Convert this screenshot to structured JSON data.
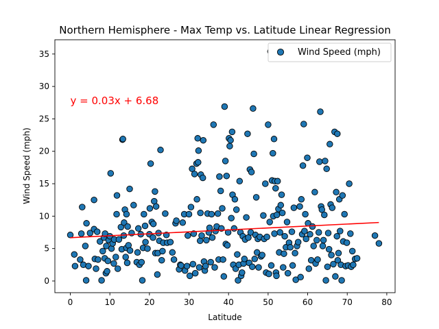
{
  "chart_data": {
    "type": "scatter",
    "title": "Northern Hemisphere - Max Temp vs. Latitude Linear Regression",
    "xlabel": "Latitude",
    "ylabel": "Wind Speed (mph)",
    "xlim": [
      -3.9,
      82.1
    ],
    "ylim": [
      -1.8,
      37.2
    ],
    "xticks": [
      0,
      10,
      20,
      30,
      40,
      50,
      60,
      70,
      80
    ],
    "yticks": [
      0,
      5,
      10,
      15,
      20,
      25,
      30,
      35
    ],
    "legend": {
      "label": "Wind Speed (mph)",
      "position": "top-right"
    },
    "grid": false,
    "point_color": "#1f77b4",
    "point_edge_color": "#000000",
    "regression": {
      "equation": "y = 0.03x + 6.68",
      "slope": 0.03,
      "intercept": 6.68,
      "x_range": [
        0.0,
        78.0
      ],
      "color": "#ff0000",
      "label_x": 0.0,
      "label_y": 27.8
    },
    "points": [
      [
        0.0,
        7.1
      ],
      [
        1.0,
        4.1
      ],
      [
        1.2,
        2.3
      ],
      [
        2.5,
        3.3
      ],
      [
        2.8,
        7.3
      ],
      [
        3.0,
        11.4
      ],
      [
        3.3,
        2.5
      ],
      [
        3.8,
        5.4
      ],
      [
        4.0,
        0.1
      ],
      [
        4.1,
        8.9
      ],
      [
        4.6,
        2.3
      ],
      [
        5.0,
        7.4
      ],
      [
        6.0,
        12.5
      ],
      [
        6.0,
        8.0
      ],
      [
        6.2,
        3.4
      ],
      [
        6.5,
        1.9
      ],
      [
        6.8,
        7.6
      ],
      [
        7.0,
        3.3
      ],
      [
        7.5,
        6.1
      ],
      [
        7.9,
        0.1
      ],
      [
        8.2,
        4.6
      ],
      [
        8.5,
        6.7
      ],
      [
        8.7,
        3.5
      ],
      [
        8.8,
        7.3
      ],
      [
        9.0,
        1.2
      ],
      [
        9.1,
        5.4
      ],
      [
        9.3,
        1.5
      ],
      [
        9.5,
        3.1
      ],
      [
        9.7,
        6.3
      ],
      [
        10.0,
        6.9
      ],
      [
        10.2,
        16.6
      ],
      [
        10.4,
        5.0
      ],
      [
        10.7,
        5.8
      ],
      [
        11.0,
        2.7
      ],
      [
        11.1,
        6.4
      ],
      [
        11.5,
        3.7
      ],
      [
        11.7,
        10.3
      ],
      [
        11.8,
        13.2
      ],
      [
        12.0,
        1.9
      ],
      [
        12.3,
        6.4
      ],
      [
        12.8,
        8.3
      ],
      [
        13.0,
        4.9
      ],
      [
        13.2,
        21.8
      ],
      [
        13.3,
        21.9
      ],
      [
        13.5,
        7.0
      ],
      [
        13.6,
        9.0
      ],
      [
        13.8,
        11.0
      ],
      [
        14.0,
        3.7
      ],
      [
        14.2,
        5.1
      ],
      [
        14.2,
        10.3
      ],
      [
        14.4,
        2.8
      ],
      [
        14.5,
        8.4
      ],
      [
        14.7,
        5.5
      ],
      [
        15.0,
        14.2
      ],
      [
        15.1,
        4.7
      ],
      [
        15.5,
        7.4
      ],
      [
        16.0,
        11.7
      ],
      [
        16.8,
        2.9
      ],
      [
        17.0,
        4.4
      ],
      [
        17.2,
        8.1
      ],
      [
        17.5,
        2.5
      ],
      [
        17.8,
        7.2
      ],
      [
        18.0,
        2.9
      ],
      [
        18.2,
        0.1
      ],
      [
        18.4,
        5.1
      ],
      [
        18.6,
        10.3
      ],
      [
        18.9,
        8.5
      ],
      [
        19.0,
        6.0
      ],
      [
        19.5,
        5.0
      ],
      [
        20.0,
        7.2
      ],
      [
        20.1,
        11.2
      ],
      [
        20.3,
        18.1
      ],
      [
        20.6,
        9.1
      ],
      [
        20.9,
        6.7
      ],
      [
        21.0,
        8.8
      ],
      [
        21.2,
        12.3
      ],
      [
        21.4,
        13.8
      ],
      [
        21.5,
        4.3
      ],
      [
        21.7,
        11.5
      ],
      [
        22.0,
        1.0
      ],
      [
        22.1,
        4.3
      ],
      [
        22.3,
        7.4
      ],
      [
        22.5,
        6.2
      ],
      [
        22.8,
        20.2
      ],
      [
        23.1,
        3.2
      ],
      [
        23.3,
        4.6
      ],
      [
        23.5,
        5.9
      ],
      [
        24.0,
        10.4
      ],
      [
        24.3,
        7.1
      ],
      [
        24.5,
        5.9
      ],
      [
        25.3,
        6.0
      ],
      [
        25.8,
        4.4
      ],
      [
        26.2,
        3.3
      ],
      [
        26.6,
        8.9
      ],
      [
        26.8,
        9.3
      ],
      [
        27.5,
        1.8
      ],
      [
        27.8,
        2.5
      ],
      [
        28.0,
        2.4
      ],
      [
        28.4,
        9.0
      ],
      [
        28.8,
        10.3
      ],
      [
        29.0,
        1.6
      ],
      [
        29.5,
        2.3
      ],
      [
        29.7,
        7.0
      ],
      [
        30.0,
        10.3
      ],
      [
        30.2,
        0.8
      ],
      [
        30.5,
        11.4
      ],
      [
        30.8,
        17.3
      ],
      [
        31.0,
        2.6
      ],
      [
        31.2,
        7.3
      ],
      [
        31.4,
        16.5
      ],
      [
        31.6,
        1.2
      ],
      [
        31.9,
        18.1
      ],
      [
        32.0,
        12.6
      ],
      [
        32.2,
        22.0
      ],
      [
        32.3,
        18.3
      ],
      [
        32.4,
        20.1
      ],
      [
        32.6,
        2.1
      ],
      [
        32.8,
        6.2
      ],
      [
        32.9,
        10.5
      ],
      [
        33.0,
        16.4
      ],
      [
        33.2,
        7.0
      ],
      [
        33.5,
        15.9
      ],
      [
        33.6,
        21.7
      ],
      [
        33.8,
        3.0
      ],
      [
        34.0,
        1.6
      ],
      [
        34.2,
        2.3
      ],
      [
        34.4,
        6.3
      ],
      [
        34.7,
        10.4
      ],
      [
        35.0,
        7.5
      ],
      [
        35.2,
        8.2
      ],
      [
        35.5,
        2.9
      ],
      [
        35.7,
        10.3
      ],
      [
        35.9,
        6.7
      ],
      [
        36.2,
        24.1
      ],
      [
        36.5,
        2.1
      ],
      [
        36.7,
        7.7
      ],
      [
        37.0,
        8.4
      ],
      [
        37.3,
        10.4
      ],
      [
        37.5,
        3.3
      ],
      [
        37.7,
        16.1
      ],
      [
        38.0,
        13.9
      ],
      [
        38.2,
        8.1
      ],
      [
        38.4,
        11.2
      ],
      [
        38.6,
        3.3
      ],
      [
        38.8,
        0.7
      ],
      [
        39.0,
        26.9
      ],
      [
        39.2,
        18.5
      ],
      [
        39.3,
        5.7
      ],
      [
        39.5,
        16.2
      ],
      [
        39.7,
        5.5
      ],
      [
        39.9,
        7.5
      ],
      [
        40.1,
        22.0
      ],
      [
        40.3,
        20.8
      ],
      [
        40.5,
        21.7
      ],
      [
        40.7,
        9.7
      ],
      [
        40.9,
        23.0
      ],
      [
        41.0,
        13.3
      ],
      [
        41.2,
        2.5
      ],
      [
        41.4,
        8.1
      ],
      [
        41.6,
        12.6
      ],
      [
        41.8,
        1.9
      ],
      [
        42.0,
        11.0
      ],
      [
        42.2,
        4.1
      ],
      [
        42.4,
        0.1
      ],
      [
        42.6,
        2.5
      ],
      [
        42.8,
        15.4
      ],
      [
        43.0,
        7.5
      ],
      [
        43.2,
        0.8
      ],
      [
        43.4,
        1.3
      ],
      [
        43.6,
        6.9
      ],
      [
        43.8,
        2.7
      ],
      [
        44.0,
        3.4
      ],
      [
        44.2,
        6.4
      ],
      [
        44.5,
        9.8
      ],
      [
        44.8,
        22.7
      ],
      [
        45.0,
        6.7
      ],
      [
        45.2,
        2.8
      ],
      [
        45.4,
        17.2
      ],
      [
        45.6,
        7.5
      ],
      [
        45.8,
        16.8
      ],
      [
        46.0,
        2.2
      ],
      [
        46.2,
        26.6
      ],
      [
        46.4,
        19.6
      ],
      [
        46.6,
        3.4
      ],
      [
        46.8,
        7.1
      ],
      [
        47.0,
        12.9
      ],
      [
        47.2,
        4.4
      ],
      [
        47.4,
        6.5
      ],
      [
        47.6,
        2.1
      ],
      [
        47.9,
        6.8
      ],
      [
        48.2,
        3.8
      ],
      [
        48.5,
        4.0
      ],
      [
        48.8,
        10.1
      ],
      [
        49.0,
        6.5
      ],
      [
        49.3,
        15.0
      ],
      [
        49.5,
        1.3
      ],
      [
        49.7,
        6.8
      ],
      [
        50.0,
        24.1
      ],
      [
        50.2,
        1.1
      ],
      [
        50.4,
        9.1
      ],
      [
        50.6,
        35.4
      ],
      [
        50.8,
        2.4
      ],
      [
        51.0,
        15.5
      ],
      [
        51.2,
        19.7
      ],
      [
        51.3,
        10.0
      ],
      [
        51.5,
        21.9
      ],
      [
        51.6,
        7.3
      ],
      [
        51.7,
        15.4
      ],
      [
        51.9,
        14.3
      ],
      [
        52.0,
        1.3
      ],
      [
        52.1,
        0.8
      ],
      [
        52.2,
        10.2
      ],
      [
        52.4,
        15.4
      ],
      [
        52.6,
        11.1
      ],
      [
        52.8,
        4.4
      ],
      [
        53.0,
        7.5
      ],
      [
        53.2,
        11.7
      ],
      [
        53.4,
        13.3
      ],
      [
        53.6,
        10.5
      ],
      [
        53.8,
        2.1
      ],
      [
        54.0,
        4.2
      ],
      [
        54.2,
        6.9
      ],
      [
        54.5,
        5.2
      ],
      [
        54.8,
        9.1
      ],
      [
        55.0,
        1.2
      ],
      [
        55.3,
        5.9
      ],
      [
        55.6,
        5.2
      ],
      [
        56.0,
        7.6
      ],
      [
        56.2,
        2.4
      ],
      [
        56.5,
        11.3
      ],
      [
        56.8,
        4.3
      ],
      [
        57.0,
        0.2
      ],
      [
        57.3,
        5.4
      ],
      [
        57.6,
        6.0
      ],
      [
        58.0,
        11.5
      ],
      [
        58.2,
        0.6
      ],
      [
        58.4,
        12.6
      ],
      [
        58.6,
        7.2
      ],
      [
        58.8,
        17.8
      ],
      [
        59.0,
        24.2
      ],
      [
        59.2,
        7.7
      ],
      [
        59.4,
        10.3
      ],
      [
        59.6,
        6.5
      ],
      [
        59.9,
        19.0
      ],
      [
        60.1,
        8.9
      ],
      [
        60.3,
        1.9
      ],
      [
        60.6,
        7.2
      ],
      [
        60.9,
        3.2
      ],
      [
        61.2,
        8.4
      ],
      [
        61.5,
        5.4
      ],
      [
        61.8,
        13.7
      ],
      [
        62.0,
        2.7
      ],
      [
        62.3,
        6.3
      ],
      [
        62.5,
        3.3
      ],
      [
        62.8,
        7.5
      ],
      [
        63.0,
        18.4
      ],
      [
        63.2,
        26.1
      ],
      [
        63.4,
        11.5
      ],
      [
        63.6,
        11.0
      ],
      [
        63.8,
        5.4
      ],
      [
        64.0,
        6.3
      ],
      [
        64.2,
        10.2
      ],
      [
        64.4,
        18.5
      ],
      [
        64.6,
        0.1
      ],
      [
        64.8,
        17.3
      ],
      [
        65.0,
        2.2
      ],
      [
        65.2,
        7.4
      ],
      [
        65.4,
        4.9
      ],
      [
        65.6,
        21.1
      ],
      [
        65.8,
        11.8
      ],
      [
        66.0,
        4.0
      ],
      [
        66.2,
        11.3
      ],
      [
        66.5,
        2.6
      ],
      [
        66.8,
        23.0
      ],
      [
        67.0,
        0.7
      ],
      [
        67.2,
        13.7
      ],
      [
        67.4,
        6.9
      ],
      [
        67.5,
        22.7
      ],
      [
        67.6,
        3.2
      ],
      [
        67.8,
        4.3
      ],
      [
        68.0,
        12.6
      ],
      [
        68.2,
        7.7
      ],
      [
        68.4,
        2.5
      ],
      [
        68.6,
        0.1
      ],
      [
        68.8,
        13.2
      ],
      [
        69.0,
        6.1
      ],
      [
        69.3,
        10.3
      ],
      [
        69.6,
        2.3
      ],
      [
        69.9,
        5.9
      ],
      [
        70.2,
        2.4
      ],
      [
        70.5,
        15.0
      ],
      [
        70.8,
        7.3
      ],
      [
        71.0,
        2.2
      ],
      [
        71.3,
        4.6
      ],
      [
        71.5,
        2.5
      ],
      [
        72.0,
        3.4
      ],
      [
        72.5,
        3.5
      ],
      [
        77.0,
        7.0
      ],
      [
        78.0,
        5.8
      ]
    ]
  }
}
